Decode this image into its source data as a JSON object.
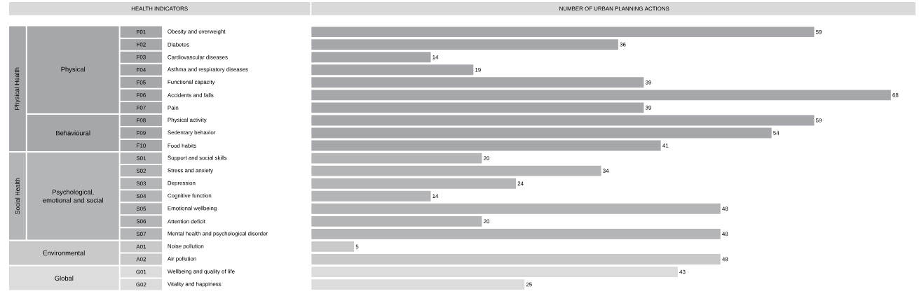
{
  "chart_data": {
    "type": "bar",
    "orientation": "horizontal",
    "data_labels": true,
    "ylabel": "HEALTH INDICATORS",
    "xlabel": "NUMBER OF URBAN PLANNING ACTIONS",
    "categories": [
      "Obesity and overweight",
      "Diabetes",
      "Cardiovascular diseases",
      "Asthma and respiratory diseases",
      "Functional capacity",
      "Accidents and falls",
      "Pain",
      "Physical activity",
      "Sedentary behavior",
      "Food habits",
      "Support and social skills",
      "Stress and anxiety",
      "Depression",
      "Cognitive function",
      "Emotional wellbeing",
      "Attention deficit",
      "Mental health and psychological disorder",
      "Noise pollution",
      "Air pollution",
      "Wellbeing and quality of life",
      "Vitality and happiness"
    ],
    "values": [
      59,
      36,
      14,
      19,
      39,
      68,
      39,
      59,
      54,
      41,
      20,
      34,
      24,
      14,
      48,
      20,
      48,
      5,
      48,
      43,
      25
    ],
    "colors": [
      "#a6a7aa",
      "#a6a7aa",
      "#a6a7aa",
      "#a6a7aa",
      "#a6a7aa",
      "#a6a7aa",
      "#a6a7aa",
      "#a6a7aa",
      "#a6a7aa",
      "#a6a7aa",
      "#b4b5b7",
      "#b4b5b7",
      "#b4b5b7",
      "#b4b5b7",
      "#b4b5b7",
      "#b4b5b7",
      "#b4b5b7",
      "#c9c9c9",
      "#c9c9c9",
      "#dcdcdc",
      "#dcdcdc"
    ],
    "annotations": [
      "F01",
      "F02",
      "F03",
      "F04",
      "F05",
      "F06",
      "F07",
      "F08",
      "F09",
      "F10",
      "S01",
      "S02",
      "S03",
      "S04",
      "S05",
      "S06",
      "S07",
      "A01",
      "A02",
      "G01",
      "G02",
      "Physical Health",
      "Physical",
      "Behavioural",
      "Social Health",
      "Psychological, emotional and social",
      "Environmental",
      "Global"
    ]
  }
}
